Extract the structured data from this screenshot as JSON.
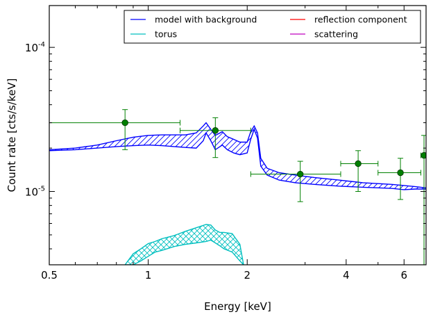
{
  "chart_data": {
    "type": "line",
    "xlabel": "Energy [keV]",
    "ylabel": "Count rate [cts/s/keV]",
    "x_scale": "log",
    "y_scale": "log",
    "xlim": [
      0.5,
      7.0
    ],
    "ylim": [
      3.1e-06,
      0.000195
    ],
    "x_ticks": [
      {
        "value": 0.5,
        "label": "0.5"
      },
      {
        "value": 1,
        "label": "1"
      },
      {
        "value": 2,
        "label": "2"
      },
      {
        "value": 4,
        "label": "4"
      },
      {
        "value": 6,
        "label": "6"
      }
    ],
    "y_ticks": [
      {
        "value": 1e-05,
        "base": "10",
        "exp": "-5"
      },
      {
        "value": 0.0001,
        "base": "10",
        "exp": "-4"
      }
    ],
    "legend": {
      "placement": "top-right",
      "entries": [
        {
          "label": "model with background",
          "color": "#0000ff"
        },
        {
          "label": "reflection component",
          "color": "#ff0000"
        },
        {
          "label": "torus",
          "color": "#00bfbf"
        },
        {
          "label": "scattering",
          "color": "#bf00bf"
        }
      ]
    },
    "series": [
      {
        "name": "model with background",
        "color": "#0000ff",
        "hatch": "diagonal",
        "x": [
          0.5,
          0.6,
          0.7,
          0.8,
          0.9,
          1.0,
          1.1,
          1.2,
          1.3,
          1.4,
          1.47,
          1.5,
          1.55,
          1.6,
          1.68,
          1.74,
          1.82,
          1.9,
          2.0,
          2.05,
          2.1,
          2.15,
          2.2,
          2.3,
          2.5,
          2.8,
          3.2,
          3.8,
          4.5,
          5.5,
          6.0,
          6.5,
          7.0
        ],
        "upper": [
          1.95e-05,
          2e-05,
          2.1e-05,
          2.25e-05,
          2.38e-05,
          2.45e-05,
          2.47e-05,
          2.47e-05,
          2.47e-05,
          2.55e-05,
          2.85e-05,
          3e-05,
          2.7e-05,
          2.45e-05,
          2.6e-05,
          2.4e-05,
          2.3e-05,
          2.2e-05,
          2.2e-05,
          2.6e-05,
          2.85e-05,
          2.55e-05,
          1.7e-05,
          1.45e-05,
          1.35e-05,
          1.3e-05,
          1.25e-05,
          1.2e-05,
          1.15e-05,
          1.12e-05,
          1.1e-05,
          1.08e-05,
          1.06e-05
        ],
        "lower": [
          1.92e-05,
          1.95e-05,
          2e-05,
          2.05e-05,
          2.08e-05,
          2.1e-05,
          2.08e-05,
          2.05e-05,
          2.02e-05,
          2e-05,
          2.25e-05,
          2.55e-05,
          2.25e-05,
          1.95e-05,
          2.1e-05,
          1.95e-05,
          1.85e-05,
          1.8e-05,
          1.85e-05,
          2.3e-05,
          2.7e-05,
          2.35e-05,
          1.5e-05,
          1.3e-05,
          1.2e-05,
          1.15e-05,
          1.12e-05,
          1.09e-05,
          1.07e-05,
          1.05e-05,
          1.03e-05,
          1.04e-05,
          1.04e-05
        ]
      },
      {
        "name": "torus",
        "color": "#00bfbf",
        "hatch": "cross",
        "x": [
          0.85,
          0.9,
          0.95,
          1.0,
          1.05,
          1.1,
          1.2,
          1.3,
          1.4,
          1.5,
          1.55,
          1.6,
          1.65,
          1.7,
          1.8,
          1.9,
          1.95
        ],
        "upper": [
          3.1e-06,
          3.7e-06,
          4e-06,
          4.35e-06,
          4.5e-06,
          4.7e-06,
          4.95e-06,
          5.3e-06,
          5.6e-06,
          5.9e-06,
          5.85e-06,
          5.4e-06,
          5.2e-06,
          5.2e-06,
          5.1e-06,
          4.3e-06,
          3.1e-06
        ],
        "lower": [
          3.1e-06,
          3.1e-06,
          3.3e-06,
          3.55e-06,
          3.8e-06,
          3.9e-06,
          4.15e-06,
          4.3e-06,
          4.4e-06,
          4.5e-06,
          4.6e-06,
          4.4e-06,
          4.2e-06,
          4e-06,
          3.8e-06,
          3.3e-06,
          3.1e-06
        ]
      }
    ],
    "data_points": {
      "color": "#008000",
      "points": [
        {
          "x": 0.85,
          "y": 3e-05,
          "xerr": [
            0.5,
            1.25
          ],
          "yerr": [
            1.95e-05,
            3.7e-05
          ]
        },
        {
          "x": 1.6,
          "y": 2.65e-05,
          "xerr": [
            1.25,
            2.05
          ],
          "yerr": [
            1.72e-05,
            3.25e-05
          ]
        },
        {
          "x": 2.9,
          "y": 1.32e-05,
          "xerr": [
            2.05,
            3.85
          ],
          "yerr": [
            8.5e-06,
            1.62e-05
          ]
        },
        {
          "x": 4.35,
          "y": 1.56e-05,
          "xerr": [
            3.85,
            5.0
          ],
          "yerr": [
            1e-05,
            1.92e-05
          ]
        },
        {
          "x": 5.85,
          "y": 1.35e-05,
          "xerr": [
            5.0,
            6.75
          ],
          "yerr": [
            8.8e-06,
            1.7e-05
          ]
        },
        {
          "x": 6.9,
          "y": 1.78e-05,
          "xerr": [
            6.75,
            7.0
          ],
          "yerr": [
            3.1e-06,
            2.45e-05
          ]
        }
      ]
    }
  }
}
